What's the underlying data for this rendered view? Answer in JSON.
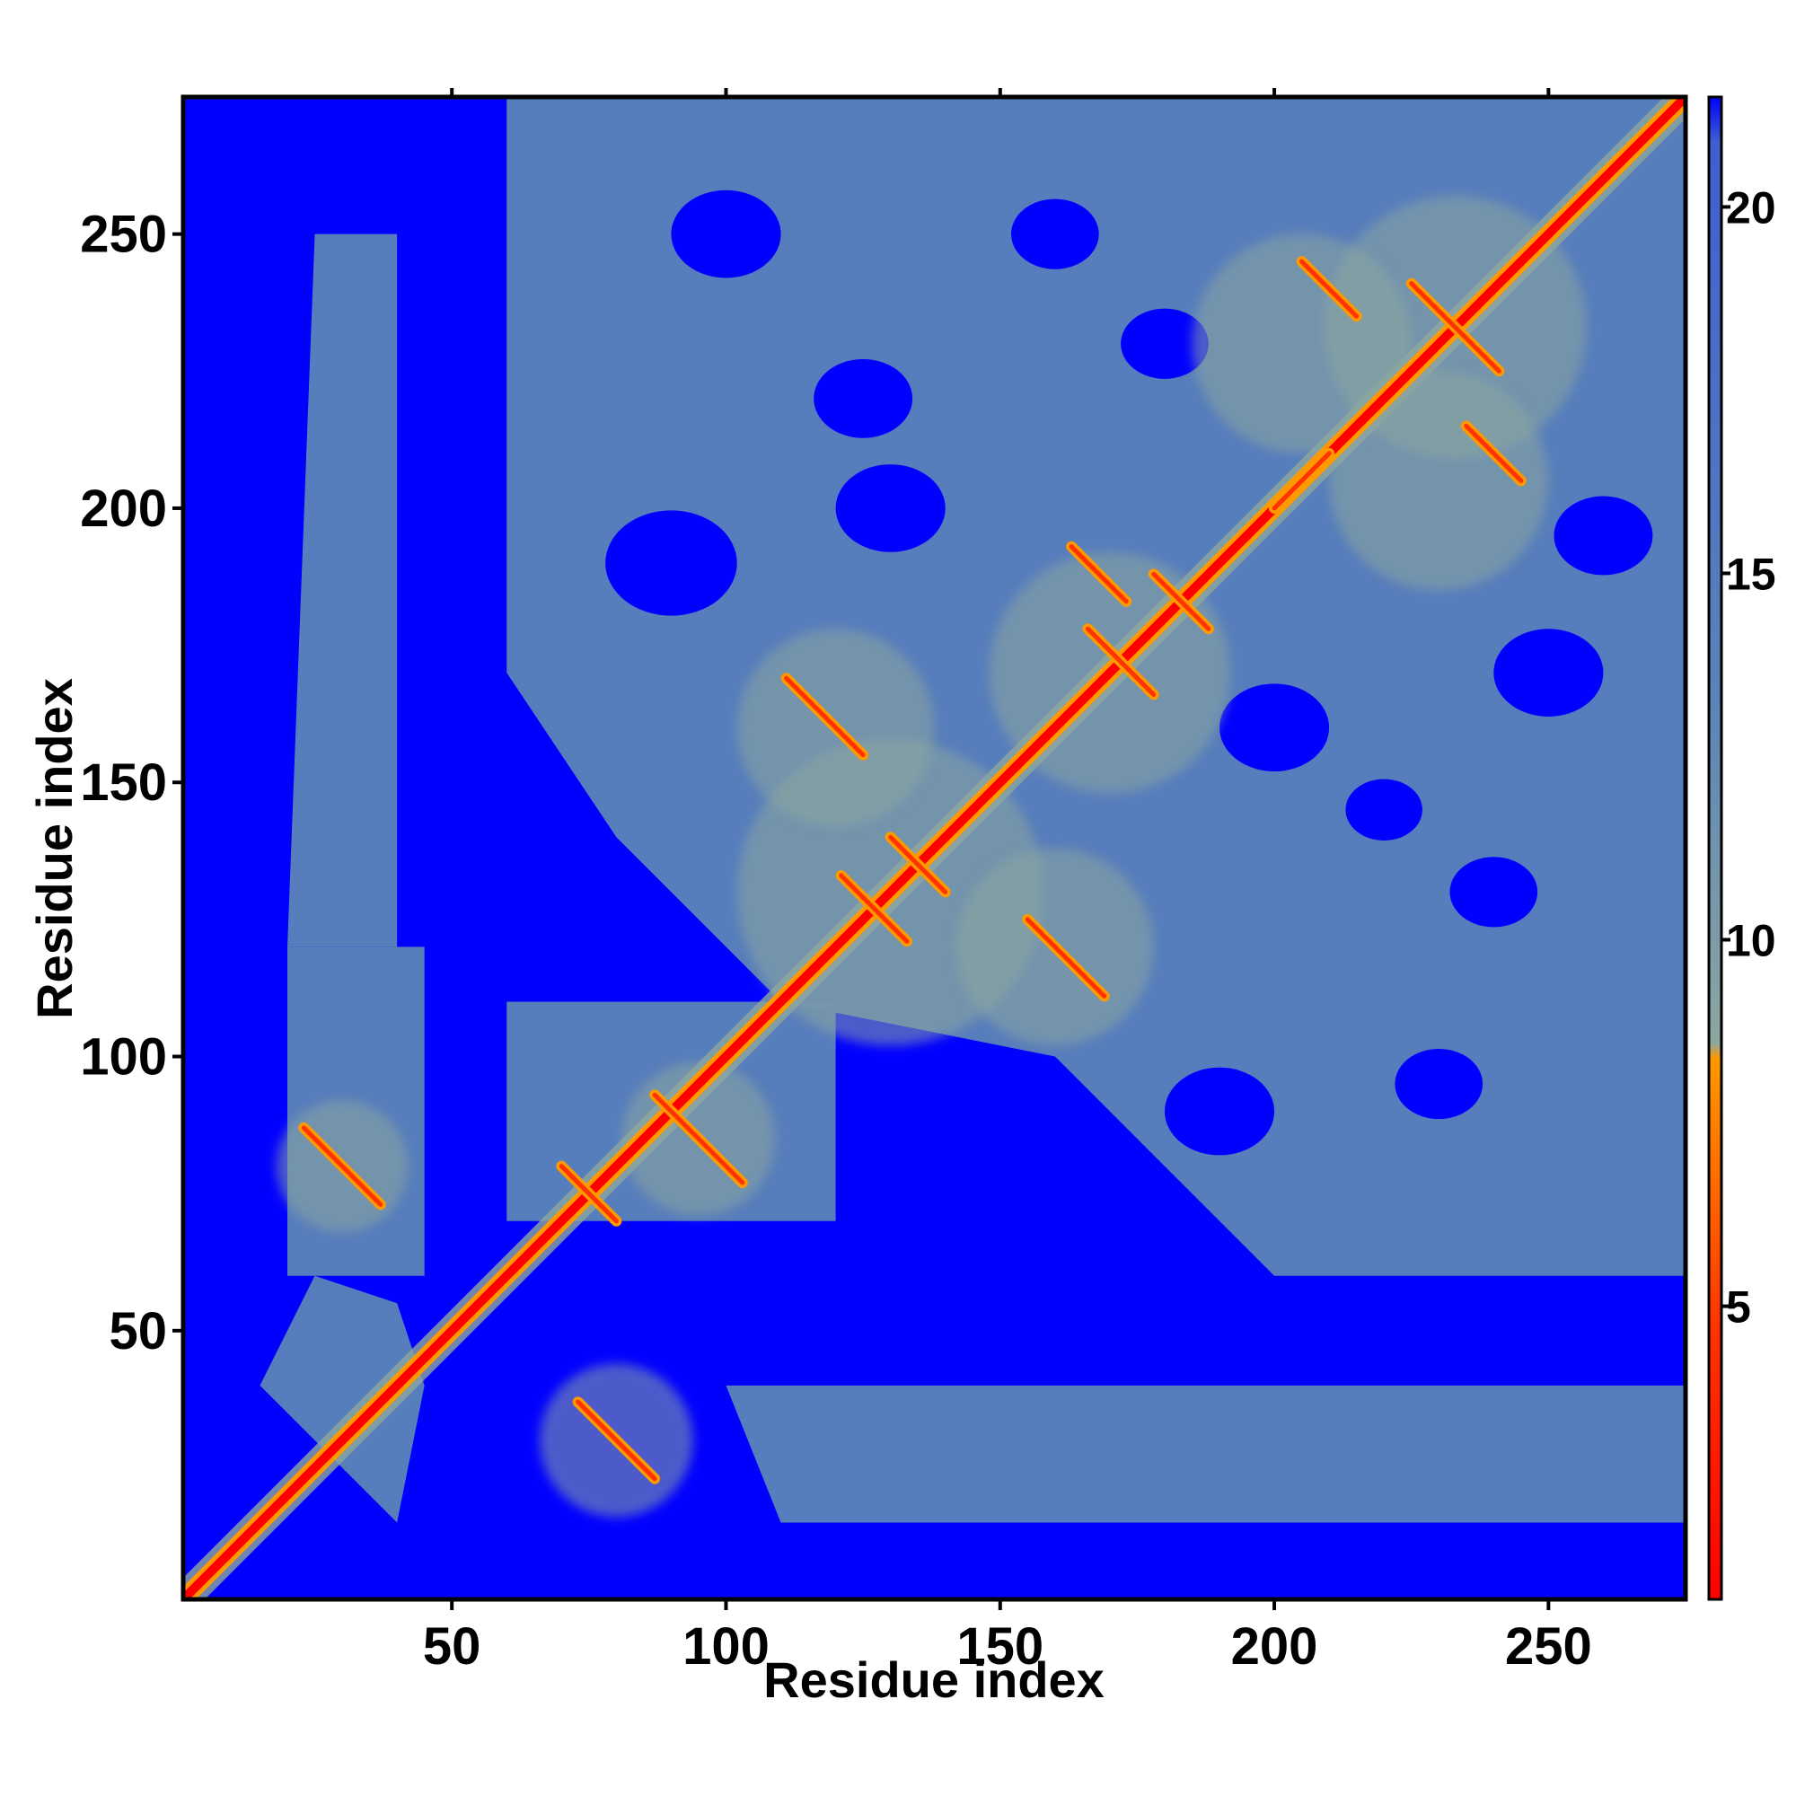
{
  "chart_data": {
    "type": "heatmap",
    "title": "",
    "xlabel": "Residue index",
    "ylabel": "Residue index",
    "xlim": [
      1,
      275
    ],
    "ylim": [
      1,
      275
    ],
    "x_ticks": [
      50,
      100,
      150,
      200,
      250
    ],
    "y_ticks": [
      50,
      100,
      150,
      200,
      250
    ],
    "colorbar": {
      "ticks": [
        5,
        10,
        15,
        20
      ],
      "range": [
        1,
        21.5
      ],
      "colors": {
        "low": "#ff0000",
        "mid": "#ff9900",
        "high_mid": "#8da7a0",
        "upper": "#5b84b8",
        "max": "#0000ff"
      }
    },
    "contact_features": [
      {
        "kind": "diagonal",
        "from": [
          1,
          1
        ],
        "to": [
          275,
          275
        ]
      },
      {
        "kind": "antiparallel",
        "center": [
          30,
          80
        ],
        "length": 14
      },
      {
        "kind": "antiparallel",
        "center": [
          80,
          30
        ],
        "length": 14
      },
      {
        "kind": "antiparallel",
        "center": [
          95,
          85
        ],
        "length": 16
      },
      {
        "kind": "antiparallel",
        "center": [
          75,
          75
        ],
        "length": 10
      },
      {
        "kind": "antiparallel",
        "center": [
          127,
          127
        ],
        "length": 12
      },
      {
        "kind": "antiparallel",
        "center": [
          135,
          135
        ],
        "length": 10
      },
      {
        "kind": "antiparallel",
        "center": [
          118,
          162
        ],
        "length": 14
      },
      {
        "kind": "antiparallel",
        "center": [
          162,
          118
        ],
        "length": 14
      },
      {
        "kind": "antiparallel",
        "center": [
          172,
          172
        ],
        "length": 12
      },
      {
        "kind": "antiparallel",
        "center": [
          183,
          183
        ],
        "length": 10
      },
      {
        "kind": "antiparallel",
        "center": [
          168,
          188
        ],
        "length": 10
      },
      {
        "kind": "antiparallel",
        "center": [
          233,
          233
        ],
        "length": 16
      },
      {
        "kind": "antiparallel",
        "center": [
          210,
          240
        ],
        "length": 10
      },
      {
        "kind": "antiparallel",
        "center": [
          240,
          210
        ],
        "length": 10
      },
      {
        "kind": "parallel",
        "center": [
          205,
          205
        ],
        "length": 10
      }
    ]
  }
}
